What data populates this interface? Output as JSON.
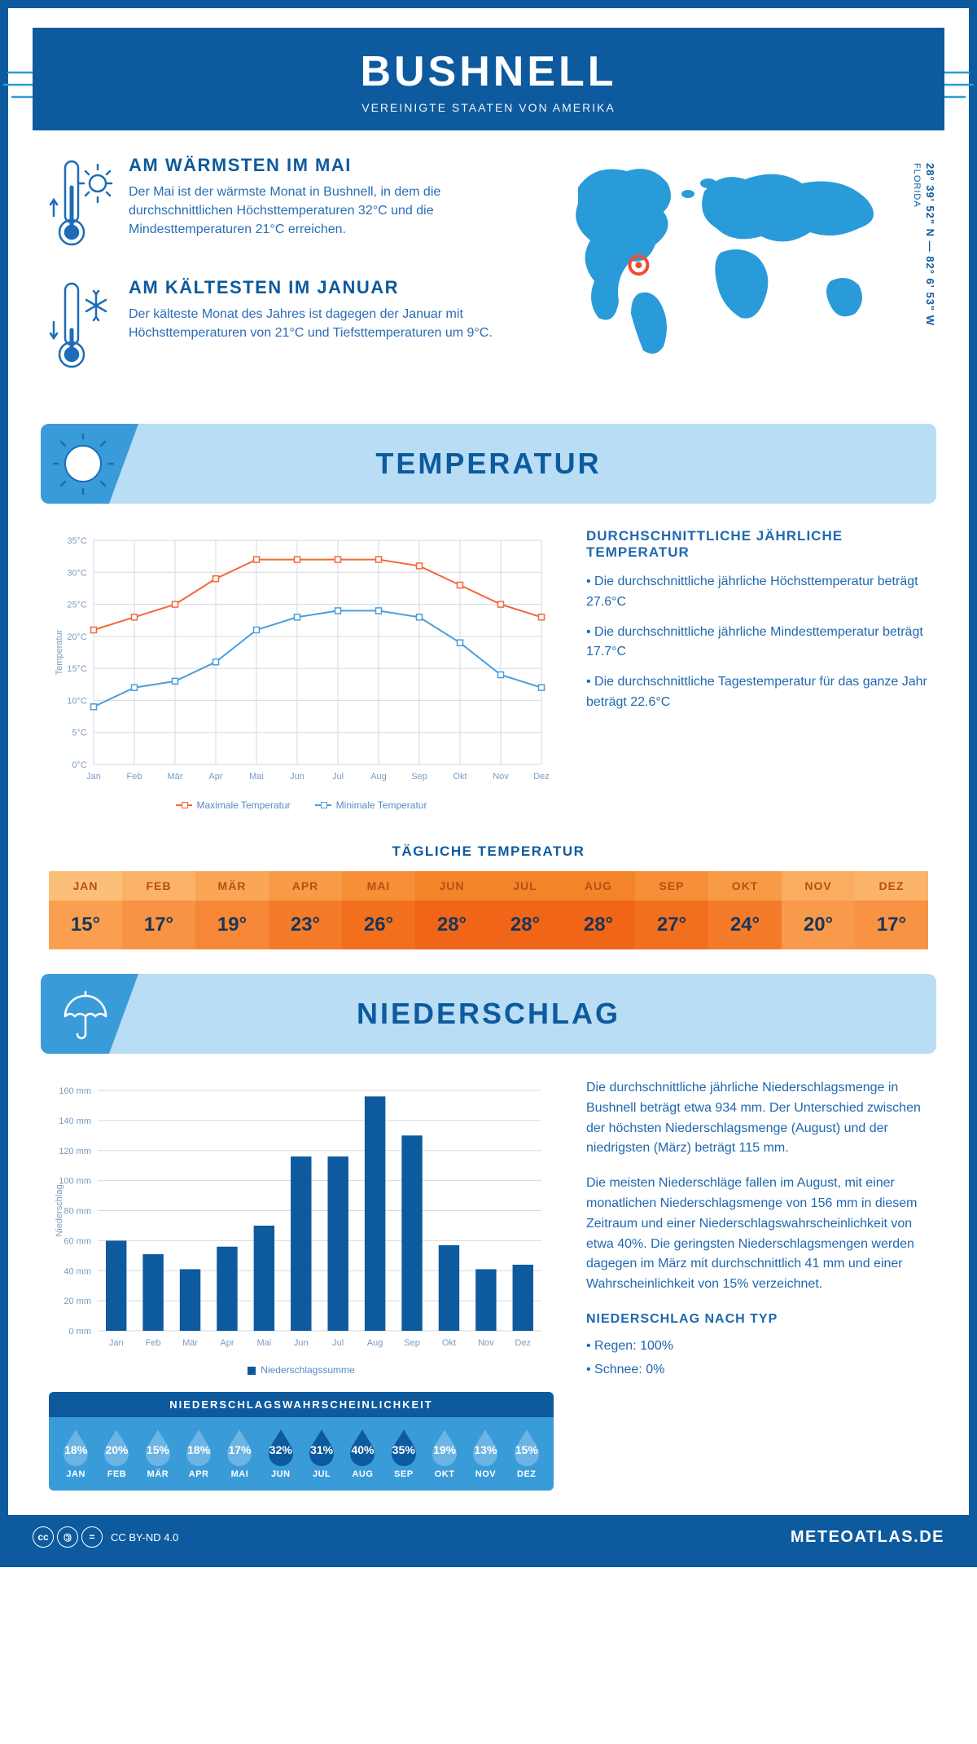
{
  "header": {
    "title": "BUSHNELL",
    "subtitle": "VEREINIGTE STAATEN VON AMERIKA"
  },
  "facts": {
    "warm": {
      "title": "AM WÄRMSTEN IM MAI",
      "text": "Der Mai ist der wärmste Monat in Bushnell, in dem die durchschnittlichen Höchsttemperaturen 32°C und die Mindesttemperaturen 21°C erreichen."
    },
    "cold": {
      "title": "AM KÄLTESTEN IM JANUAR",
      "text": "Der kälteste Monat des Jahres ist dagegen der Januar mit Höchsttemperaturen von 21°C und Tiefsttemperaturen um 9°C."
    }
  },
  "map": {
    "coords": "28° 39' 52\" N — 82° 6' 53\" W",
    "region": "FLORIDA",
    "marker": {
      "cx_pct": 26,
      "cy_pct": 52
    }
  },
  "temperature_section": {
    "banner": "TEMPERATUR",
    "chart": {
      "months": [
        "Jan",
        "Feb",
        "Mär",
        "Apr",
        "Mai",
        "Jun",
        "Jul",
        "Aug",
        "Sep",
        "Okt",
        "Nov",
        "Dez"
      ],
      "max": [
        21,
        23,
        25,
        29,
        32,
        32,
        32,
        32,
        31,
        28,
        25,
        23
      ],
      "min": [
        9,
        12,
        13,
        16,
        21,
        23,
        24,
        24,
        23,
        19,
        14,
        12
      ],
      "ylim": [
        0,
        35
      ],
      "ytick": 5,
      "colors": {
        "max": "#f26739",
        "min": "#4a9edb",
        "grid": "#d5d9de",
        "axis_text": "#7a9cc2"
      },
      "legend_max": "Maximale Temperatur",
      "legend_min": "Minimale Temperatur",
      "ylabel": "Temperatur"
    },
    "desc": {
      "title": "DURCHSCHNITTLICHE JÄHRLICHE TEMPERATUR",
      "b1": "• Die durchschnittliche jährliche Höchsttemperatur beträgt 27.6°C",
      "b2": "• Die durchschnittliche jährliche Mindesttemperatur beträgt 17.7°C",
      "b3": "• Die durchschnittliche Tagestemperatur für das ganze Jahr beträgt 22.6°C"
    },
    "daily": {
      "title": "TÄGLICHE TEMPERATUR",
      "months": [
        "JAN",
        "FEB",
        "MÄR",
        "APR",
        "MAI",
        "JUN",
        "JUL",
        "AUG",
        "SEP",
        "OKT",
        "NOV",
        "DEZ"
      ],
      "values": [
        "15°",
        "17°",
        "19°",
        "23°",
        "26°",
        "28°",
        "28°",
        "28°",
        "27°",
        "24°",
        "20°",
        "17°"
      ],
      "top_colors": [
        "#fcbf79",
        "#fbb368",
        "#f9a757",
        "#f89b47",
        "#f68f37",
        "#f4842a",
        "#f4842a",
        "#f4842a",
        "#f68f37",
        "#f89b47",
        "#faad60",
        "#fbb368"
      ],
      "bot_colors": [
        "#fa9f50",
        "#f89343",
        "#f68736",
        "#f47b2a",
        "#f26f1e",
        "#f06517",
        "#f06517",
        "#f06517",
        "#f26f1e",
        "#f47b2a",
        "#f79a4b",
        "#f89343"
      ]
    }
  },
  "precip_section": {
    "banner": "NIEDERSCHLAG",
    "chart": {
      "months": [
        "Jan",
        "Feb",
        "Mär",
        "Apr",
        "Mai",
        "Jun",
        "Jul",
        "Aug",
        "Sep",
        "Okt",
        "Nov",
        "Dez"
      ],
      "values": [
        60,
        51,
        41,
        56,
        70,
        116,
        116,
        156,
        130,
        57,
        41,
        44
      ],
      "ylim": [
        0,
        160
      ],
      "ytick": 20,
      "bar_color": "#0d5a9e",
      "grid": "#d5d9de",
      "ylabel": "Niederschlag",
      "legend": "Niederschlagssumme"
    },
    "text1": "Die durchschnittliche jährliche Niederschlagsmenge in Bushnell beträgt etwa 934 mm. Der Unterschied zwischen der höchsten Niederschlagsmenge (August) und der niedrigsten (März) beträgt 115 mm.",
    "text2": "Die meisten Niederschläge fallen im August, mit einer monatlichen Niederschlagsmenge von 156 mm in diesem Zeitraum und einer Niederschlagswahrscheinlichkeit von etwa 40%. Die geringsten Niederschlagsmengen werden dagegen im März mit durchschnittlich 41 mm und einer Wahrscheinlichkeit von 15% verzeichnet.",
    "type_title": "NIEDERSCHLAG NACH TYP",
    "type1": "• Regen: 100%",
    "type2": "• Schnee: 0%",
    "prob": {
      "title": "NIEDERSCHLAGSWAHRSCHEINLICHKEIT",
      "months": [
        "JAN",
        "FEB",
        "MÄR",
        "APR",
        "MAI",
        "JUN",
        "JUL",
        "AUG",
        "SEP",
        "OKT",
        "NOV",
        "DEZ"
      ],
      "values": [
        "18%",
        "20%",
        "15%",
        "18%",
        "17%",
        "32%",
        "31%",
        "40%",
        "35%",
        "19%",
        "13%",
        "15%"
      ],
      "drop_colors": [
        "#6bb4e3",
        "#6bb4e3",
        "#6bb4e3",
        "#6bb4e3",
        "#6bb4e3",
        "#0d5a9e",
        "#0d5a9e",
        "#0d5a9e",
        "#0d5a9e",
        "#6bb4e3",
        "#6bb4e3",
        "#6bb4e3"
      ]
    }
  },
  "footer": {
    "license": "CC BY-ND 4.0",
    "site": "METEOATLAS.DE"
  }
}
